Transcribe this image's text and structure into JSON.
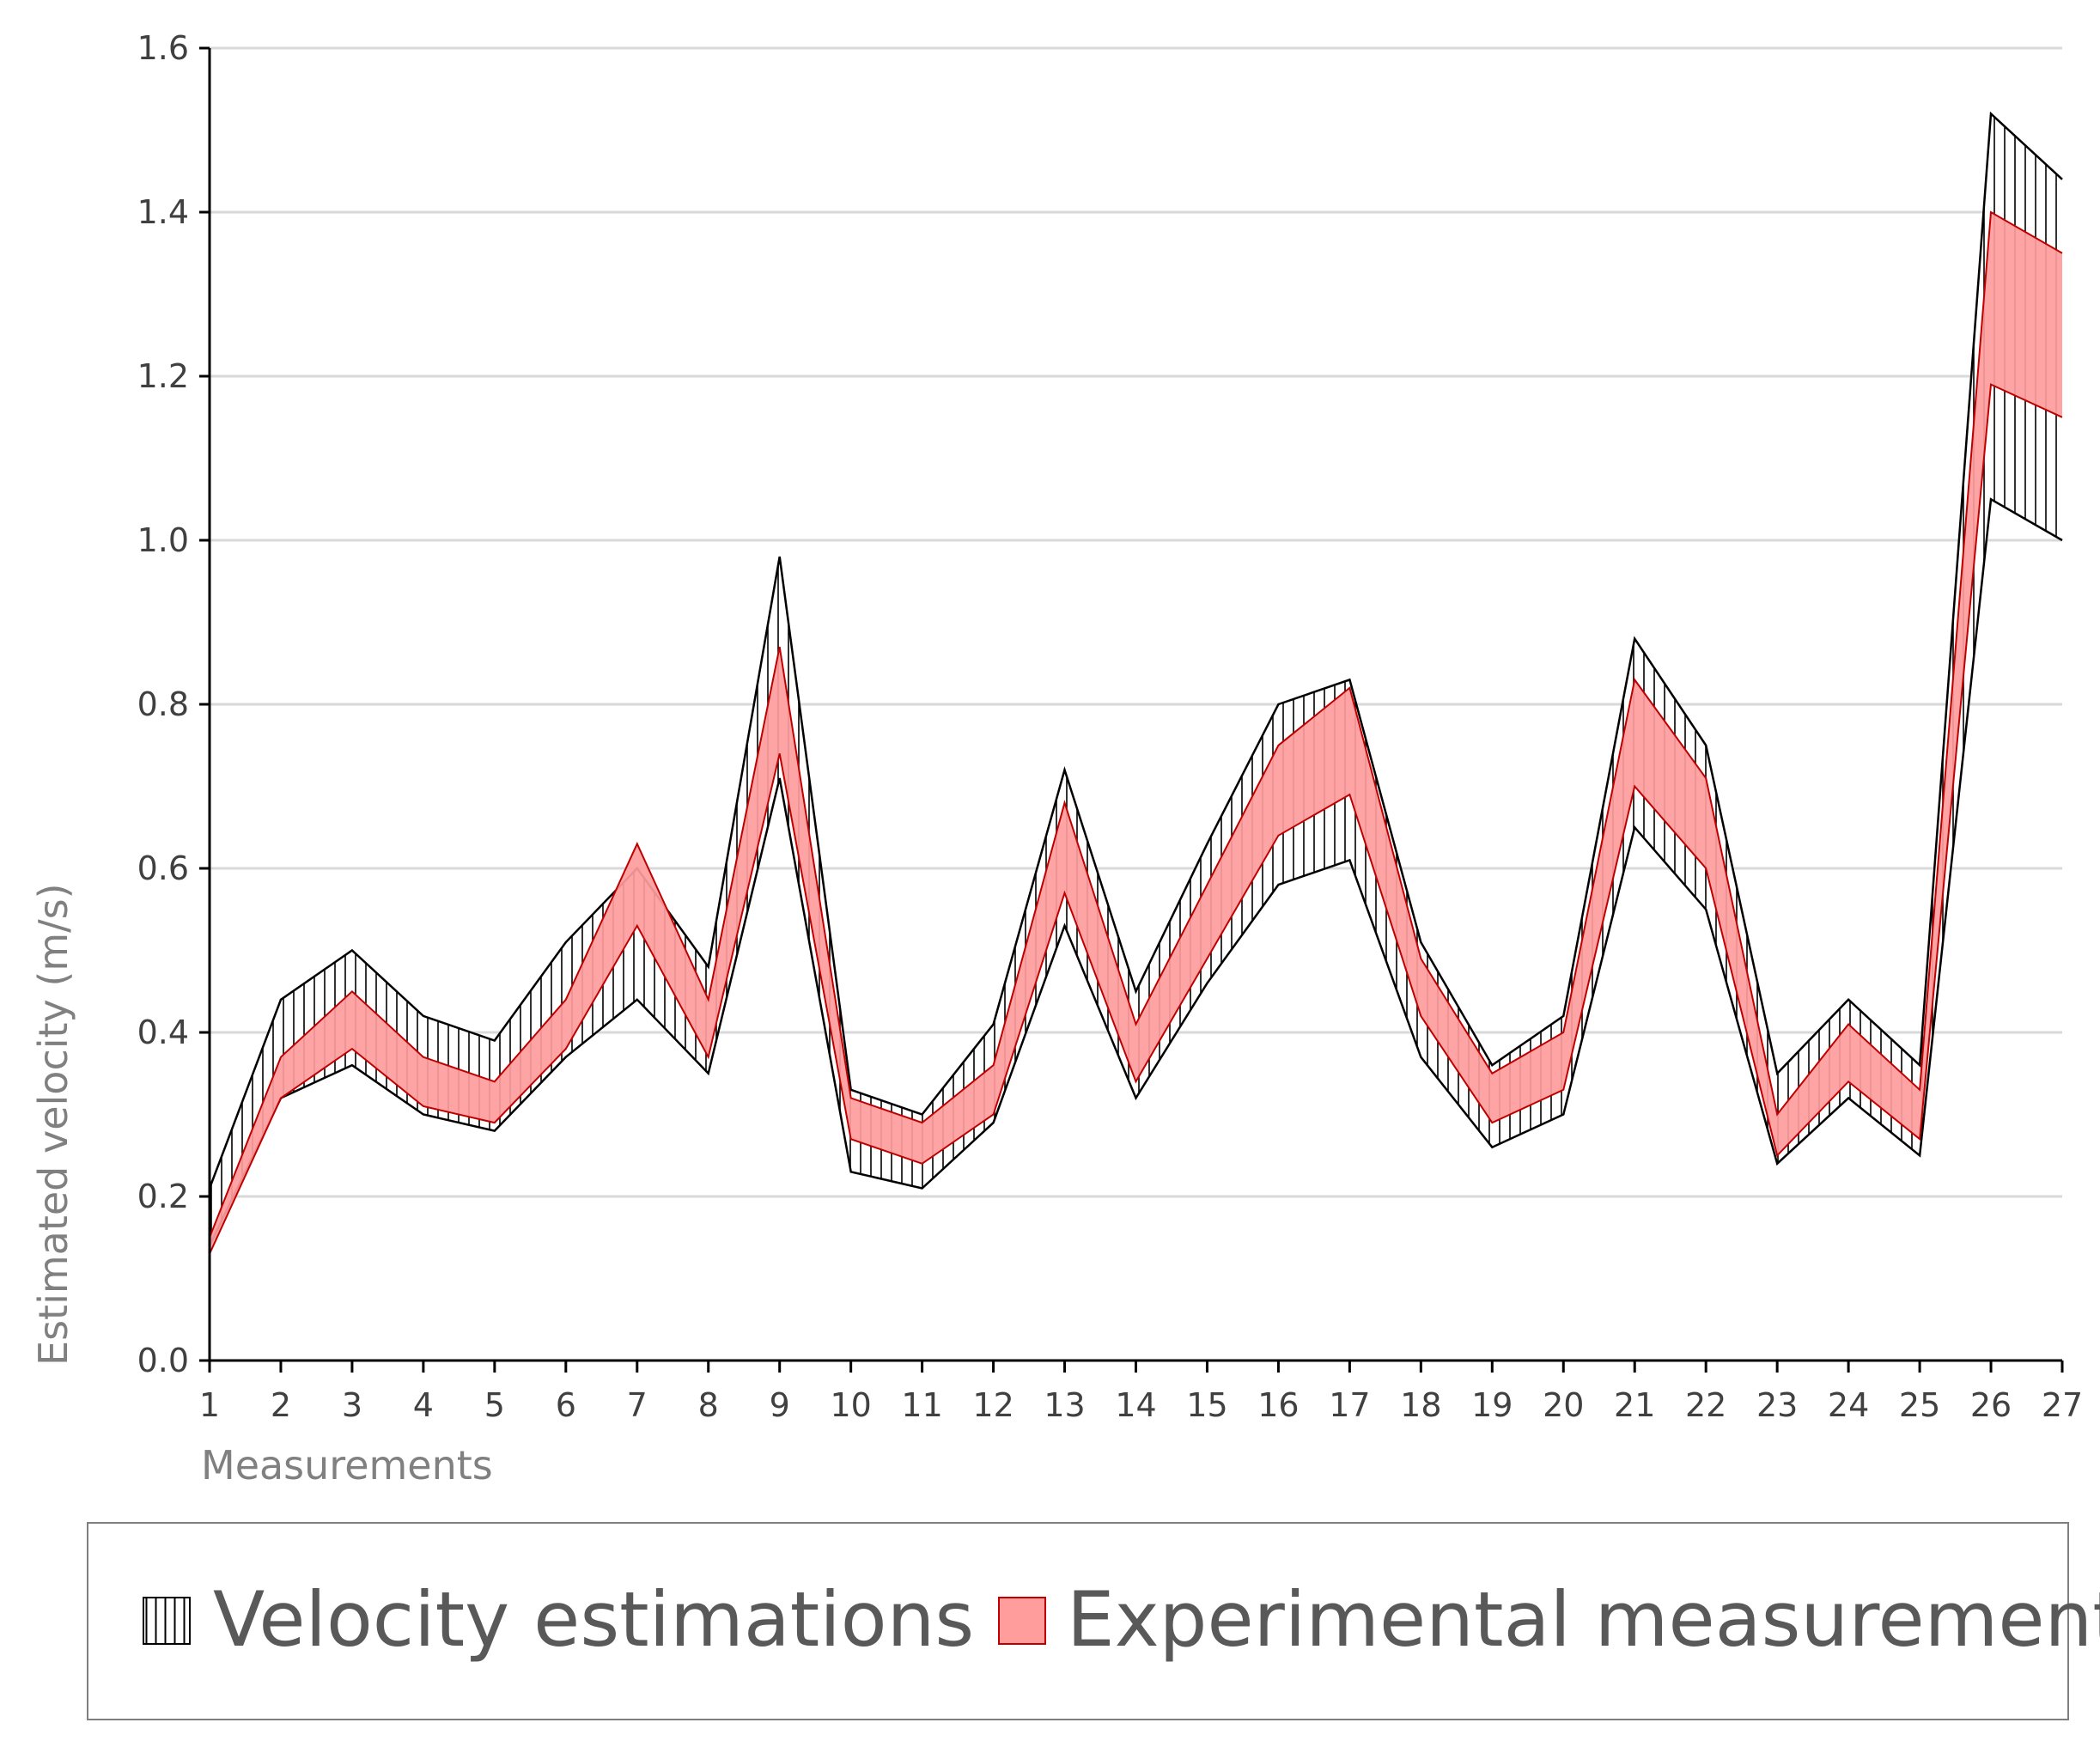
{
  "chart_data": {
    "type": "area",
    "title": "",
    "xlabel": "Measurements",
    "ylabel": "Estimated velocity (m/s)",
    "ylim": [
      0,
      1.6
    ],
    "y_ticks": [
      "0.0",
      "0.2",
      "0.4",
      "0.6",
      "0.8",
      "1.0",
      "1.2",
      "1.4",
      "1.6"
    ],
    "y_tick_values": [
      0,
      0.2,
      0.4,
      0.6,
      0.8,
      1.0,
      1.2,
      1.4,
      1.6
    ],
    "grid": true,
    "legend_position": "bottom",
    "categories": [
      "1",
      "2",
      "3",
      "4",
      "5",
      "6",
      "7",
      "8",
      "9",
      "10",
      "11",
      "12",
      "13",
      "14",
      "15",
      "16",
      "17",
      "18",
      "19",
      "20",
      "21",
      "22",
      "23",
      "24",
      "25",
      "26",
      "27"
    ],
    "series": [
      {
        "name": "Velocity estimations",
        "style": "vertical-hatch",
        "color": "#000000",
        "lower": [
          0.14,
          0.32,
          0.36,
          0.3,
          0.28,
          0.37,
          0.44,
          0.35,
          0.71,
          0.23,
          0.21,
          0.29,
          0.53,
          0.32,
          0.46,
          0.58,
          0.61,
          0.37,
          0.26,
          0.3,
          0.65,
          0.55,
          0.24,
          0.32,
          0.25,
          1.05,
          1.0
        ],
        "upper": [
          0.21,
          0.44,
          0.5,
          0.42,
          0.39,
          0.51,
          0.6,
          0.48,
          0.98,
          0.33,
          0.3,
          0.41,
          0.72,
          0.45,
          0.63,
          0.8,
          0.83,
          0.51,
          0.36,
          0.42,
          0.88,
          0.75,
          0.35,
          0.44,
          0.36,
          1.52,
          1.44
        ]
      },
      {
        "name": "Experimental measurements",
        "style": "solid",
        "color": "#ff9c9c",
        "edge_color": "#c00000",
        "lower": [
          0.13,
          0.32,
          0.38,
          0.31,
          0.29,
          0.38,
          0.53,
          0.37,
          0.74,
          0.27,
          0.24,
          0.3,
          0.57,
          0.34,
          0.49,
          0.64,
          0.69,
          0.42,
          0.29,
          0.33,
          0.7,
          0.6,
          0.25,
          0.34,
          0.27,
          1.19,
          1.15
        ],
        "upper": [
          0.15,
          0.37,
          0.45,
          0.37,
          0.34,
          0.44,
          0.63,
          0.44,
          0.87,
          0.32,
          0.29,
          0.36,
          0.68,
          0.41,
          0.58,
          0.75,
          0.82,
          0.49,
          0.35,
          0.4,
          0.83,
          0.71,
          0.3,
          0.41,
          0.33,
          1.4,
          1.35
        ]
      }
    ]
  }
}
